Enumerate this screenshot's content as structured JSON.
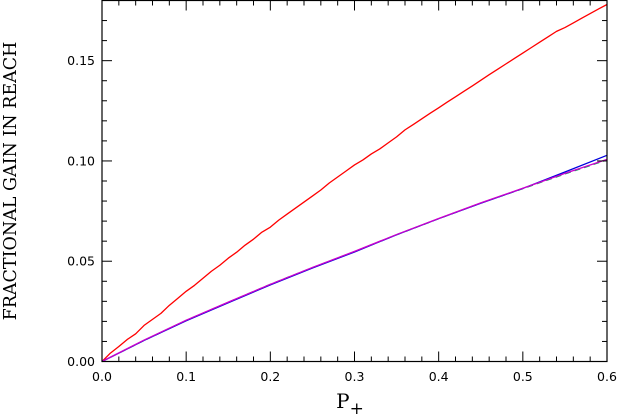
{
  "chart_data": {
    "type": "line",
    "title": "",
    "xlabel": "P",
    "xlabel_subscript": "+",
    "ylabel": "FRACTIONAL GAIN IN REACH",
    "xlim": [
      0,
      0.6
    ],
    "ylim": [
      0,
      0.18
    ],
    "xticks": [
      0.0,
      0.1,
      0.2,
      0.3,
      0.4,
      0.5,
      0.6
    ],
    "xtick_labels": [
      "0.0",
      "0.1",
      "0.2",
      "0.3",
      "0.4",
      "0.5",
      "0.6"
    ],
    "yticks": [
      0.0,
      0.05,
      0.1,
      0.15
    ],
    "ytick_labels": [
      "0.00",
      "0.05",
      "0.10",
      "0.15"
    ],
    "grid": false,
    "legend": "none",
    "series": [
      {
        "color": "#ff0000",
        "dash": "solid",
        "x": [
          0,
          0.01,
          0.02,
          0.03,
          0.04,
          0.05,
          0.06,
          0.07,
          0.08,
          0.09,
          0.1,
          0.11,
          0.12,
          0.13,
          0.14,
          0.15,
          0.16,
          0.17,
          0.18,
          0.19,
          0.2,
          0.21,
          0.22,
          0.23,
          0.24,
          0.25,
          0.26,
          0.27,
          0.28,
          0.29,
          0.3,
          0.31,
          0.32,
          0.33,
          0.34,
          0.35,
          0.36,
          0.37,
          0.38,
          0.39,
          0.4,
          0.41,
          0.42,
          0.43,
          0.44,
          0.45,
          0.46,
          0.47,
          0.48,
          0.49,
          0.5,
          0.51,
          0.52,
          0.53,
          0.54,
          0.55,
          0.56,
          0.57,
          0.58,
          0.59,
          0.6
        ],
        "y": [
          0,
          0.0042,
          0.0075,
          0.011,
          0.0138,
          0.018,
          0.021,
          0.024,
          0.028,
          0.0315,
          0.035,
          0.038,
          0.0415,
          0.045,
          0.048,
          0.0515,
          0.0545,
          0.058,
          0.061,
          0.0645,
          0.067,
          0.0705,
          0.0735,
          0.0765,
          0.0795,
          0.0825,
          0.0855,
          0.089,
          0.092,
          0.095,
          0.098,
          0.1005,
          0.1035,
          0.106,
          0.109,
          0.112,
          0.1155,
          0.1182,
          0.121,
          0.1238,
          0.1265,
          0.1293,
          0.132,
          0.1347,
          0.1374,
          0.1402,
          0.143,
          0.1457,
          0.1484,
          0.1511,
          0.1538,
          0.1565,
          0.1592,
          0.1619,
          0.1646,
          0.1665,
          0.1688,
          0.1712,
          0.1735,
          0.1758,
          0.178
        ]
      },
      {
        "color": "#00aa55",
        "dash": "dashed",
        "x": [
          0,
          0.05,
          0.1,
          0.15,
          0.2,
          0.25,
          0.3,
          0.35,
          0.4,
          0.45,
          0.5,
          0.55,
          0.6
        ],
        "y": [
          0,
          0.0105,
          0.0205,
          0.0295,
          0.0385,
          0.0468,
          0.0548,
          0.0632,
          0.0712,
          0.079,
          0.0862,
          0.0935,
          0.1005
        ]
      },
      {
        "color": "#0000dd",
        "dash": "solid",
        "x": [
          0,
          0.05,
          0.1,
          0.15,
          0.2,
          0.25,
          0.3,
          0.35,
          0.4,
          0.45,
          0.5,
          0.55,
          0.6
        ],
        "y": [
          0,
          0.0105,
          0.0203,
          0.0293,
          0.0382,
          0.0466,
          0.0546,
          0.0632,
          0.0712,
          0.0789,
          0.0863,
          0.0945,
          0.1028
        ]
      },
      {
        "color": "#cc00cc",
        "dash": "solid",
        "x": [
          0,
          0.05,
          0.1,
          0.15,
          0.2,
          0.25,
          0.3,
          0.35,
          0.4,
          0.45,
          0.5,
          0.55,
          0.6
        ],
        "y": [
          0,
          0.0107,
          0.0206,
          0.0296,
          0.0385,
          0.0469,
          0.0549,
          0.0633,
          0.0713,
          0.0791,
          0.0864,
          0.0938,
          0.1008
        ]
      }
    ]
  }
}
